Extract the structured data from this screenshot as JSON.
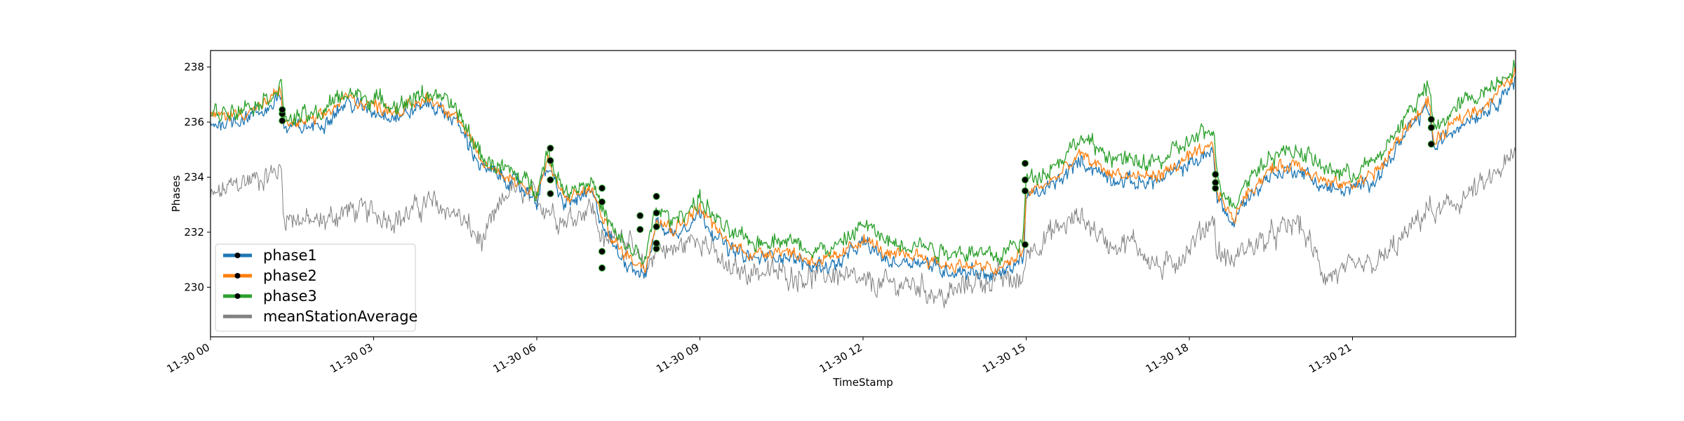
{
  "chart_data": {
    "type": "line",
    "xlabel": "TimeStamp",
    "ylabel": "Phases",
    "xlim": [
      0,
      24
    ],
    "ylim": [
      228.2,
      238.6
    ],
    "x_ticks": [
      {
        "value": 0,
        "label": "11-30 00"
      },
      {
        "value": 3,
        "label": "11-30 03"
      },
      {
        "value": 6,
        "label": "11-30 06"
      },
      {
        "value": 9,
        "label": "11-30 09"
      },
      {
        "value": 12,
        "label": "11-30 12"
      },
      {
        "value": 15,
        "label": "11-30 15"
      },
      {
        "value": 18,
        "label": "11-30 18"
      },
      {
        "value": 21,
        "label": "11-30 21"
      }
    ],
    "y_ticks": [
      230,
      232,
      234,
      236,
      238
    ],
    "grid": false,
    "legend_position": "lower-left",
    "x_hours": [
      0,
      0.5,
      1,
      1.3,
      1.35,
      2,
      2.5,
      3,
      3.5,
      4,
      4.5,
      5,
      5.5,
      6,
      6.2,
      6.5,
      7,
      7.25,
      7.5,
      8,
      8.2,
      8.5,
      9,
      9.5,
      10,
      10.5,
      11,
      11.5,
      12,
      12.5,
      13,
      13.5,
      14,
      14.5,
      14.95,
      15,
      15.5,
      16,
      16.5,
      17,
      17.5,
      18,
      18.45,
      18.5,
      18.8,
      19,
      19.5,
      20,
      20.5,
      21,
      21.5,
      22,
      22.4,
      22.5,
      23,
      23.5,
      24
    ],
    "series": [
      {
        "name": "phase1",
        "color": "#1f77b4",
        "noise": 0.35,
        "values": [
          235.9,
          236.1,
          236.4,
          237.0,
          235.7,
          235.9,
          236.7,
          236.4,
          236.2,
          236.7,
          236.1,
          234.3,
          233.9,
          233.2,
          234.4,
          233.0,
          233.4,
          232.1,
          231.2,
          230.4,
          232.4,
          231.9,
          232.7,
          231.4,
          231.0,
          231.2,
          230.8,
          230.8,
          231.6,
          230.9,
          231.0,
          230.6,
          230.6,
          230.4,
          231.1,
          233.2,
          233.7,
          234.6,
          234.0,
          233.8,
          233.9,
          234.5,
          234.9,
          233.4,
          232.2,
          233.1,
          234.1,
          234.3,
          233.6,
          233.5,
          234.1,
          235.6,
          236.6,
          235.0,
          236.0,
          236.5,
          237.5
        ]
      },
      {
        "name": "phase2",
        "color": "#ff7f0e",
        "noise": 0.3,
        "values": [
          236.2,
          236.3,
          236.6,
          237.2,
          235.9,
          236.1,
          236.9,
          236.6,
          236.4,
          236.9,
          236.3,
          234.5,
          234.0,
          233.4,
          234.6,
          233.2,
          233.6,
          232.3,
          231.4,
          230.7,
          232.6,
          232.1,
          232.9,
          231.6,
          231.2,
          231.4,
          231.0,
          231.0,
          231.8,
          231.1,
          231.2,
          230.8,
          230.8,
          230.6,
          231.3,
          233.4,
          233.9,
          234.8,
          234.2,
          234.0,
          234.1,
          234.7,
          235.1,
          233.6,
          232.4,
          233.3,
          234.3,
          234.5,
          233.8,
          233.7,
          234.3,
          235.8,
          236.8,
          235.2,
          236.2,
          236.7,
          237.8
        ]
      },
      {
        "name": "phase3",
        "color": "#2ca02c",
        "noise": 0.4,
        "values": [
          236.3,
          236.5,
          236.8,
          237.4,
          236.1,
          236.3,
          237.1,
          236.8,
          236.6,
          237.1,
          236.5,
          234.7,
          234.2,
          233.6,
          234.9,
          233.5,
          233.9,
          232.6,
          231.7,
          231.0,
          232.9,
          232.4,
          233.2,
          232.0,
          231.6,
          231.8,
          231.4,
          231.4,
          232.3,
          231.6,
          231.6,
          231.3,
          231.3,
          231.1,
          231.8,
          233.9,
          234.4,
          235.4,
          234.8,
          234.5,
          234.6,
          235.3,
          235.7,
          234.1,
          232.9,
          233.8,
          234.8,
          235.0,
          234.3,
          234.1,
          234.7,
          236.3,
          237.3,
          235.7,
          236.7,
          237.2,
          238.1
        ]
      },
      {
        "name": "meanStationAverage",
        "color": "#808080",
        "noise": 0.55,
        "values": [
          233.2,
          233.8,
          234.0,
          234.3,
          232.6,
          232.3,
          232.8,
          232.7,
          232.5,
          233.1,
          232.7,
          231.6,
          233.6,
          233.2,
          232.9,
          232.4,
          233.0,
          231.5,
          232.2,
          230.5,
          231.5,
          231.3,
          231.9,
          230.6,
          230.6,
          230.5,
          230.4,
          230.5,
          230.1,
          230.1,
          230.1,
          229.6,
          230.2,
          230.3,
          230.2,
          231.3,
          232.0,
          232.6,
          231.6,
          231.6,
          230.6,
          231.4,
          232.6,
          231.3,
          230.9,
          231.4,
          231.8,
          232.4,
          230.4,
          230.6,
          230.9,
          231.9,
          232.9,
          232.6,
          233.2,
          233.8,
          234.8
        ]
      }
    ],
    "marker_events": [
      {
        "x": 1.32,
        "values": [
          236.05,
          236.3,
          236.45
        ]
      },
      {
        "x": 6.25,
        "values": [
          233.4,
          233.9,
          234.6,
          235.05
        ]
      },
      {
        "x": 7.2,
        "values": [
          230.7,
          231.3,
          233.1,
          233.6
        ]
      },
      {
        "x": 7.9,
        "values": [
          232.1,
          232.6
        ]
      },
      {
        "x": 8.2,
        "values": [
          231.4,
          231.6,
          232.2,
          232.7,
          233.3
        ]
      },
      {
        "x": 14.98,
        "values": [
          231.55,
          233.5,
          233.9,
          234.5
        ]
      },
      {
        "x": 18.48,
        "values": [
          233.6,
          233.8,
          234.1
        ]
      },
      {
        "x": 22.45,
        "values": [
          235.2,
          235.8,
          236.1
        ]
      }
    ]
  }
}
